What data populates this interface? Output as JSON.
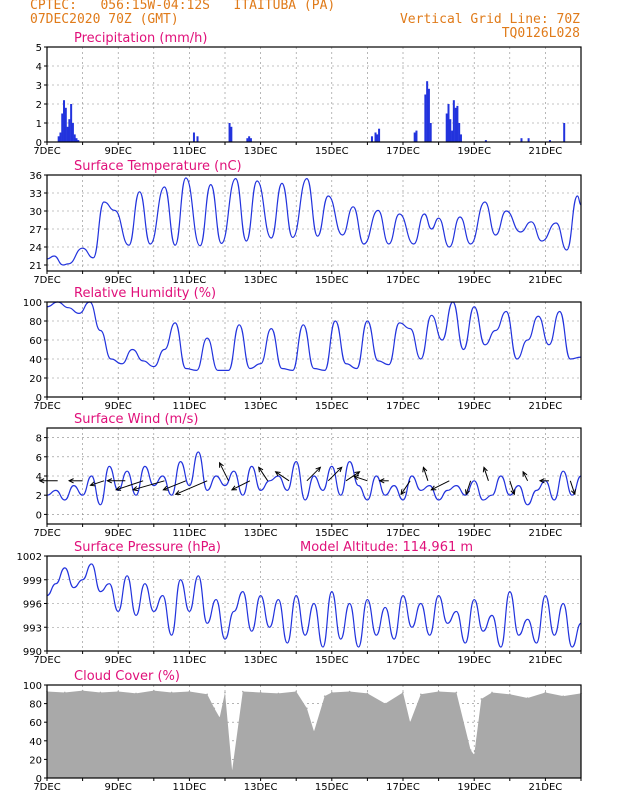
{
  "header": {
    "line1_left": "CPTEC:   056:15W-04:12S   ITAITUBA (PA)",
    "line2_left": "07DEC2020 70Z (GMT)",
    "line2_right": "Vertical Grid Line: 70Z",
    "line3_right": "TQ0126L028",
    "color": "#e07b1a"
  },
  "colors": {
    "title": "#e0107a",
    "series": "#2233dd",
    "grid": "#888888",
    "cloud": "#a9a9a9"
  },
  "chart_data": [
    {
      "id": "precip",
      "type": "bar",
      "title": "Precipitation (mm/h)",
      "xlim": [
        7,
        22
      ],
      "ylim": [
        0,
        5
      ],
      "yticks": [
        "0",
        "1",
        "2",
        "3",
        "4",
        "5"
      ],
      "xticks": [
        "7DEC",
        "9DEC",
        "11DEC",
        "13DEC",
        "15DEC",
        "17DEC",
        "19DEC",
        "21DEC"
      ],
      "x": [
        7.3,
        7.35,
        7.4,
        7.45,
        7.5,
        7.55,
        7.6,
        7.65,
        7.7,
        7.75,
        7.8,
        7.85,
        11.1,
        11.2,
        12.1,
        12.15,
        12.6,
        12.65,
        12.7,
        16.1,
        16.2,
        16.25,
        16.3,
        17.3,
        17.35,
        17.6,
        17.65,
        17.7,
        17.75,
        18.2,
        18.25,
        18.3,
        18.35,
        18.4,
        18.45,
        18.5,
        18.55,
        18.6,
        19.3,
        20.3,
        20.5,
        21.1,
        21.5
      ],
      "values": [
        0.3,
        0.5,
        1.5,
        2.2,
        1.8,
        0.8,
        1.2,
        2.0,
        1.0,
        0.4,
        0.2,
        0.1,
        0.5,
        0.3,
        1.0,
        0.8,
        0.2,
        0.3,
        0.2,
        0.3,
        0.5,
        0.4,
        0.7,
        0.5,
        0.6,
        2.5,
        3.2,
        2.8,
        1.0,
        1.5,
        2.0,
        1.2,
        0.6,
        2.2,
        1.8,
        1.9,
        1.0,
        0.4,
        0.1,
        0.2,
        0.2,
        0.1,
        1.0
      ]
    },
    {
      "id": "temp",
      "type": "line",
      "title": "Surface Temperature (nC)",
      "xlim": [
        7,
        22
      ],
      "ylim": [
        20,
        36
      ],
      "yticks": [
        "21",
        "24",
        "27",
        "30",
        "33",
        "36"
      ],
      "xticks": [
        "7DEC",
        "9DEC",
        "11DEC",
        "13DEC",
        "15DEC",
        "17DEC",
        "19DEC",
        "21DEC"
      ],
      "x": [
        7.0,
        7.2,
        7.45,
        7.6,
        8.0,
        8.3,
        8.6,
        8.9,
        9.3,
        9.6,
        9.9,
        10.3,
        10.6,
        10.9,
        11.3,
        11.6,
        11.9,
        12.3,
        12.6,
        12.9,
        13.3,
        13.6,
        13.9,
        14.3,
        14.6,
        14.9,
        15.3,
        15.6,
        15.9,
        16.3,
        16.6,
        16.9,
        17.3,
        17.6,
        17.8,
        18.0,
        18.3,
        18.6,
        18.9,
        19.3,
        19.6,
        19.9,
        20.3,
        20.6,
        20.9,
        21.3,
        21.6,
        21.9,
        22.0
      ],
      "values": [
        22,
        22.5,
        21,
        21.2,
        23.8,
        22.2,
        31.5,
        30.1,
        24.3,
        33.2,
        24.5,
        34.0,
        24.3,
        35.5,
        24.2,
        34.4,
        24.6,
        35.4,
        25.0,
        35.0,
        25.5,
        34.6,
        25.6,
        35.4,
        25.8,
        32.5,
        26.0,
        30.7,
        24.5,
        30.1,
        24.5,
        29.5,
        24.5,
        29.5,
        27.0,
        28.8,
        24.0,
        29.0,
        24.5,
        31.5,
        26.0,
        30.0,
        26.5,
        28.2,
        25.0,
        28.0,
        23.5,
        32.5,
        31.0
      ]
    },
    {
      "id": "rh",
      "type": "line",
      "title": "Relative Humidity (%)",
      "xlim": [
        7,
        22
      ],
      "ylim": [
        0,
        100
      ],
      "yticks": [
        "0",
        "20",
        "40",
        "60",
        "80",
        "100"
      ],
      "xticks": [
        "7DEC",
        "9DEC",
        "11DEC",
        "13DEC",
        "15DEC",
        "17DEC",
        "19DEC",
        "21DEC"
      ],
      "x": [
        7.0,
        7.3,
        7.6,
        7.9,
        8.2,
        8.5,
        8.8,
        9.1,
        9.4,
        9.7,
        10.0,
        10.3,
        10.6,
        10.9,
        11.2,
        11.5,
        11.8,
        12.1,
        12.4,
        12.7,
        13.0,
        13.3,
        13.6,
        13.9,
        14.2,
        14.5,
        14.8,
        15.1,
        15.4,
        15.7,
        16.0,
        16.3,
        16.6,
        16.9,
        17.2,
        17.5,
        17.8,
        18.1,
        18.4,
        18.7,
        19.0,
        19.3,
        19.6,
        19.9,
        20.2,
        20.5,
        20.8,
        21.1,
        21.4,
        21.7,
        22.0
      ],
      "values": [
        95,
        100,
        94,
        88,
        100,
        70,
        40,
        35,
        50,
        38,
        32,
        50,
        78,
        30,
        28,
        62,
        28,
        28,
        76,
        30,
        35,
        72,
        30,
        28,
        76,
        30,
        28,
        80,
        35,
        30,
        80,
        38,
        34,
        78,
        72,
        40,
        86,
        60,
        100,
        50,
        95,
        55,
        70,
        90,
        40,
        60,
        85,
        55,
        90,
        40,
        42
      ]
    },
    {
      "id": "wind",
      "type": "line",
      "title": "Surface Wind (m/s)",
      "xlim": [
        7,
        22
      ],
      "ylim": [
        -1,
        9
      ],
      "yticks": [
        "0",
        "2",
        "4",
        "6",
        "8"
      ],
      "xticks": [
        "7DEC",
        "9DEC",
        "11DEC",
        "13DEC",
        "15DEC",
        "17DEC",
        "19DEC",
        "21DEC"
      ],
      "x": [
        7.0,
        7.25,
        7.5,
        7.75,
        8.0,
        8.25,
        8.5,
        8.75,
        9.0,
        9.25,
        9.5,
        9.75,
        10.0,
        10.25,
        10.5,
        10.75,
        11.0,
        11.25,
        11.5,
        11.75,
        12.0,
        12.25,
        12.5,
        12.75,
        13.0,
        13.25,
        13.5,
        13.75,
        14.0,
        14.25,
        14.5,
        14.75,
        15.0,
        15.25,
        15.5,
        15.75,
        16.0,
        16.25,
        16.5,
        16.75,
        17.0,
        17.25,
        17.5,
        17.75,
        18.0,
        18.25,
        18.5,
        18.75,
        19.0,
        19.25,
        19.5,
        19.75,
        20.0,
        20.25,
        20.5,
        20.75,
        21.0,
        21.25,
        21.5,
        21.75,
        22.0
      ],
      "values": [
        2.0,
        2.5,
        1.5,
        3.0,
        2.0,
        4.0,
        1.0,
        5.0,
        2.5,
        4.5,
        2.0,
        5.0,
        3.0,
        4.0,
        2.0,
        5.5,
        3.0,
        6.5,
        2.5,
        4.0,
        3.0,
        4.5,
        2.0,
        5.0,
        2.5,
        3.5,
        4.0,
        2.5,
        5.5,
        1.5,
        4.0,
        2.5,
        5.0,
        2.0,
        5.5,
        3.0,
        1.5,
        4.0,
        2.0,
        3.0,
        1.5,
        4.0,
        2.5,
        3.0,
        1.5,
        2.5,
        3.0,
        2.0,
        3.5,
        1.5,
        2.0,
        4.0,
        2.0,
        3.0,
        1.0,
        2.5,
        3.5,
        1.5,
        4.5,
        2.0,
        4.0
      ],
      "arrows": [
        {
          "x": 7.3,
          "u": -2.0,
          "v": 0.0
        },
        {
          "x": 8.0,
          "u": -1.5,
          "v": 0.0
        },
        {
          "x": 8.6,
          "u": -1.5,
          "v": -0.5
        },
        {
          "x": 9.2,
          "u": -2.0,
          "v": 0.0
        },
        {
          "x": 9.7,
          "u": -3.0,
          "v": -1.0
        },
        {
          "x": 10.3,
          "u": -3.5,
          "v": -1.0
        },
        {
          "x": 10.9,
          "u": -2.5,
          "v": -1.0
        },
        {
          "x": 11.5,
          "u": -3.5,
          "v": -1.5
        },
        {
          "x": 12.1,
          "u": -1.0,
          "v": 2.0
        },
        {
          "x": 12.7,
          "u": -2.0,
          "v": -1.0
        },
        {
          "x": 13.2,
          "u": -1.0,
          "v": 1.5
        },
        {
          "x": 13.8,
          "u": -1.5,
          "v": 1.0
        },
        {
          "x": 14.3,
          "u": 1.5,
          "v": 1.5
        },
        {
          "x": 14.9,
          "u": 1.5,
          "v": 1.5
        },
        {
          "x": 15.4,
          "u": 1.5,
          "v": 1.0
        },
        {
          "x": 16.0,
          "u": -1.5,
          "v": 0.5
        },
        {
          "x": 16.6,
          "u": -1.0,
          "v": 0.0
        },
        {
          "x": 17.2,
          "u": -1.0,
          "v": -1.5
        },
        {
          "x": 17.7,
          "u": -0.5,
          "v": 1.5
        },
        {
          "x": 18.3,
          "u": -2.0,
          "v": -1.0
        },
        {
          "x": 18.9,
          "u": -0.5,
          "v": -1.5
        },
        {
          "x": 19.4,
          "u": -0.5,
          "v": 1.5
        },
        {
          "x": 20.0,
          "u": 0.5,
          "v": -1.5
        },
        {
          "x": 20.5,
          "u": -0.5,
          "v": 1.0
        },
        {
          "x": 21.1,
          "u": -1.0,
          "v": 0.0
        },
        {
          "x": 21.7,
          "u": 0.5,
          "v": -1.5
        }
      ]
    },
    {
      "id": "press",
      "type": "line",
      "title": "Surface Pressure (hPa)",
      "subtitle": "Model Altitude: 114.961 m",
      "xlim": [
        7,
        22
      ],
      "ylim": [
        990,
        1002
      ],
      "yticks": [
        "990",
        "993",
        "996",
        "999",
        "1002"
      ],
      "xticks": [
        "7DEC",
        "9DEC",
        "11DEC",
        "13DEC",
        "15DEC",
        "17DEC",
        "19DEC",
        "21DEC"
      ],
      "x": [
        7.0,
        7.25,
        7.5,
        7.75,
        8.0,
        8.25,
        8.5,
        8.75,
        9.0,
        9.25,
        9.5,
        9.75,
        10.0,
        10.25,
        10.5,
        10.75,
        11.0,
        11.25,
        11.5,
        11.75,
        12.0,
        12.25,
        12.5,
        12.75,
        13.0,
        13.25,
        13.5,
        13.75,
        14.0,
        14.25,
        14.5,
        14.75,
        15.0,
        15.25,
        15.5,
        15.75,
        16.0,
        16.25,
        16.5,
        16.75,
        17.0,
        17.25,
        17.5,
        17.75,
        18.0,
        18.25,
        18.5,
        18.75,
        19.0,
        19.25,
        19.5,
        19.75,
        20.0,
        20.25,
        20.5,
        20.75,
        21.0,
        21.25,
        21.5,
        21.75,
        22.0
      ],
      "values": [
        997.0,
        998.5,
        1000.5,
        998.0,
        999.0,
        1001.0,
        997.5,
        998.5,
        995.0,
        999.5,
        994.5,
        998.5,
        995.0,
        997.0,
        992.0,
        999.0,
        995.0,
        999.5,
        993.5,
        996.5,
        991.5,
        995.0,
        997.5,
        992.5,
        997.0,
        993.0,
        996.5,
        991.0,
        997.0,
        992.0,
        996.0,
        990.5,
        997.5,
        991.5,
        996.0,
        990.5,
        996.5,
        992.0,
        995.5,
        991.5,
        997.0,
        993.0,
        996.0,
        992.0,
        997.0,
        993.5,
        995.0,
        991.0,
        996.5,
        992.5,
        994.5,
        990.5,
        997.5,
        992.0,
        994.0,
        991.0,
        997.0,
        992.0,
        996.0,
        990.5,
        993.5
      ]
    },
    {
      "id": "cloud",
      "type": "bar",
      "title": "Cloud Cover (%)",
      "xlim": [
        7,
        22
      ],
      "ylim": [
        0,
        100
      ],
      "yticks": [
        "0",
        "20",
        "40",
        "60",
        "80",
        "100"
      ],
      "xticks": [
        "7DEC",
        "9DEC",
        "11DEC",
        "13DEC",
        "15DEC",
        "17DEC",
        "19DEC",
        "21DEC"
      ],
      "x": [
        7.0,
        7.5,
        8.0,
        8.5,
        9.0,
        9.5,
        10.0,
        10.5,
        11.0,
        11.5,
        11.7,
        11.85,
        12.0,
        12.2,
        12.5,
        13.0,
        13.5,
        14.0,
        14.3,
        14.5,
        14.8,
        15.0,
        15.5,
        16.0,
        16.5,
        17.0,
        17.2,
        17.5,
        18.0,
        18.5,
        18.9,
        19.0,
        19.2,
        19.5,
        20.0,
        20.5,
        21.0,
        21.5,
        22.0
      ],
      "values": [
        93,
        92,
        94,
        92,
        93,
        91,
        94,
        92,
        93,
        90,
        75,
        65,
        92,
        8,
        93,
        92,
        91,
        93,
        75,
        50,
        88,
        92,
        93,
        91,
        80,
        92,
        60,
        90,
        93,
        92,
        30,
        25,
        85,
        92,
        90,
        86,
        92,
        88,
        91
      ]
    }
  ]
}
